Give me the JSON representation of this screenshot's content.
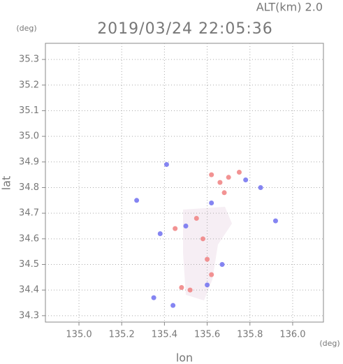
{
  "chart_data": {
    "type": "scatter",
    "title": "2019/03/24 22:05:36",
    "subtitle": "ALT(km) 2.0",
    "x_label": "lon",
    "y_label": "lat",
    "x_unit": "(deg)",
    "y_unit": "(deg)",
    "xlim": [
      134.843,
      136.144
    ],
    "ylim": [
      34.275,
      35.363
    ],
    "xticks": [
      {
        "value": 135.0,
        "label": "135.0"
      },
      135.2,
      135.4,
      135.6,
      135.8,
      {
        "value": 136.0,
        "label": "136.0"
      }
    ],
    "yticks": [
      34.3,
      34.4,
      34.5,
      34.6,
      34.7,
      34.8,
      34.9,
      {
        "value": 35.0,
        "label": "35.0"
      },
      35.1,
      35.2,
      35.3
    ],
    "grid": true,
    "series": [
      {
        "color": "#f08080",
        "x": [
          135.62,
          135.66,
          135.7,
          135.55,
          135.58,
          135.6,
          135.62,
          135.48,
          135.52,
          135.75,
          135.68,
          135.45
        ],
        "values": [
          34.85,
          34.82,
          34.84,
          34.68,
          34.6,
          34.52,
          34.46,
          34.41,
          34.4,
          34.86,
          34.78,
          34.64
        ]
      },
      {
        "color": "#7070f0",
        "x": [
          135.35,
          135.27,
          135.41,
          135.78,
          135.62,
          135.67,
          135.6,
          135.44,
          135.5,
          135.92,
          135.85,
          135.38
        ],
        "values": [
          34.37,
          34.75,
          34.89,
          34.83,
          34.74,
          34.5,
          34.42,
          34.34,
          34.65,
          34.67,
          34.8,
          34.62
        ]
      }
    ]
  }
}
